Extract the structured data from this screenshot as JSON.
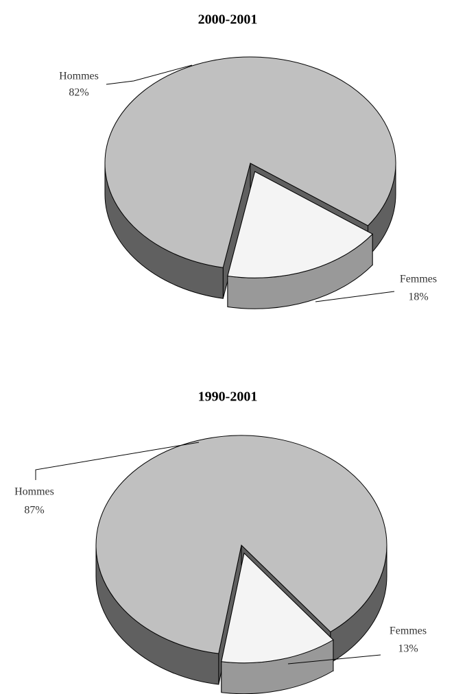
{
  "chart_data": [
    {
      "type": "pie",
      "title": "2000-2001",
      "categories": [
        "Hommes",
        "Femmes"
      ],
      "values": [
        82,
        18
      ],
      "value_labels": [
        "82%",
        "18%"
      ],
      "colors": [
        "#c0c0c0",
        "#f4f4f4"
      ]
    },
    {
      "type": "pie",
      "title": "1990-2001",
      "categories": [
        "Hommes",
        "Femmes"
      ],
      "values": [
        87,
        13
      ],
      "value_labels": [
        "87%",
        "13%"
      ],
      "colors": [
        "#c0c0c0",
        "#f4f4f4"
      ]
    }
  ]
}
